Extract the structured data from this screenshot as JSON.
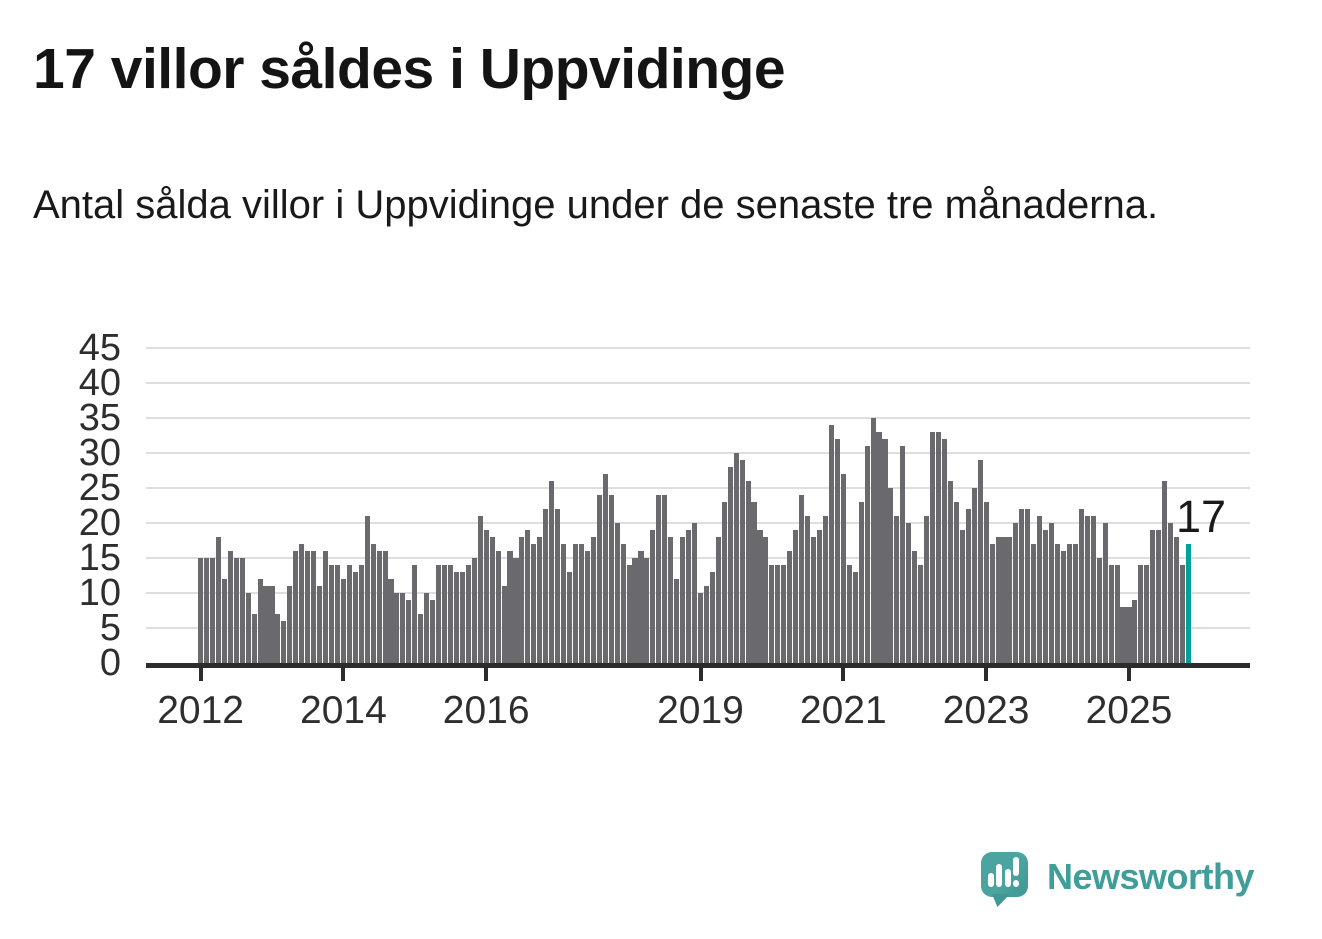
{
  "header": {
    "title": "17 villor såldes i Uppvidinge",
    "subtitle": "Antal sålda villor i Uppvidinge under de senaste tre månaderna."
  },
  "annotation": {
    "last_value_label": "17"
  },
  "branding": {
    "wordmark": "Newsworthy",
    "logo_icon": "speech-bubble-bar-chart"
  },
  "colors": {
    "bar": "#69696e",
    "highlight_bar": "#00a09b",
    "axis": "#2c2c2c",
    "gridline": "#dedede",
    "text": "#191919",
    "brand_teal": "#3f9e99"
  },
  "chart_data": {
    "type": "bar",
    "title": "17 villor såldes i Uppvidinge",
    "subtitle": "Antal sålda villor i Uppvidinge under de senaste tre månaderna.",
    "xlabel": "",
    "ylabel": "",
    "ylim": [
      0,
      45
    ],
    "yticks": [
      0,
      5,
      10,
      15,
      20,
      25,
      30,
      35,
      40,
      45
    ],
    "grid": "horizontal",
    "legend": "none",
    "start_month": "2012-01",
    "end_month": "2025-11",
    "x_ticks": [
      {
        "label": "2012",
        "month_index": 0
      },
      {
        "label": "2014",
        "month_index": 24
      },
      {
        "label": "2016",
        "month_index": 48
      },
      {
        "label": "2019",
        "month_index": 84
      },
      {
        "label": "2021",
        "month_index": 108
      },
      {
        "label": "2023",
        "month_index": 132
      },
      {
        "label": "2025",
        "month_index": 156
      }
    ],
    "values": [
      15,
      15,
      15,
      18,
      12,
      16,
      15,
      15,
      10,
      7,
      12,
      11,
      11,
      7,
      6,
      11,
      16,
      17,
      16,
      16,
      11,
      16,
      14,
      14,
      12,
      14,
      13,
      14,
      21,
      17,
      16,
      16,
      12,
      10,
      10,
      9,
      14,
      7,
      10,
      9,
      14,
      14,
      14,
      13,
      13,
      14,
      15,
      21,
      19,
      18,
      16,
      11,
      16,
      15,
      18,
      19,
      17,
      18,
      22,
      26,
      22,
      17,
      13,
      17,
      17,
      16,
      18,
      24,
      27,
      24,
      20,
      17,
      14,
      15,
      16,
      15,
      19,
      24,
      24,
      18,
      12,
      18,
      19,
      20,
      10,
      11,
      13,
      18,
      23,
      28,
      30,
      29,
      26,
      23,
      19,
      18,
      14,
      14,
      14,
      16,
      19,
      24,
      21,
      18,
      19,
      21,
      34,
      32,
      27,
      14,
      13,
      23,
      31,
      35,
      33,
      32,
      25,
      21,
      31,
      20,
      16,
      14,
      21,
      33,
      33,
      32,
      26,
      23,
      19,
      22,
      25,
      29,
      23,
      17,
      18,
      18,
      18,
      20,
      22,
      22,
      17,
      21,
      19,
      20,
      17,
      16,
      17,
      17,
      22,
      21,
      21,
      15,
      20,
      14,
      14,
      8,
      8,
      9,
      14,
      14,
      19,
      19,
      26,
      20,
      18,
      14,
      17
    ],
    "highlight": {
      "index": 166,
      "value": 17,
      "label": "17"
    }
  }
}
